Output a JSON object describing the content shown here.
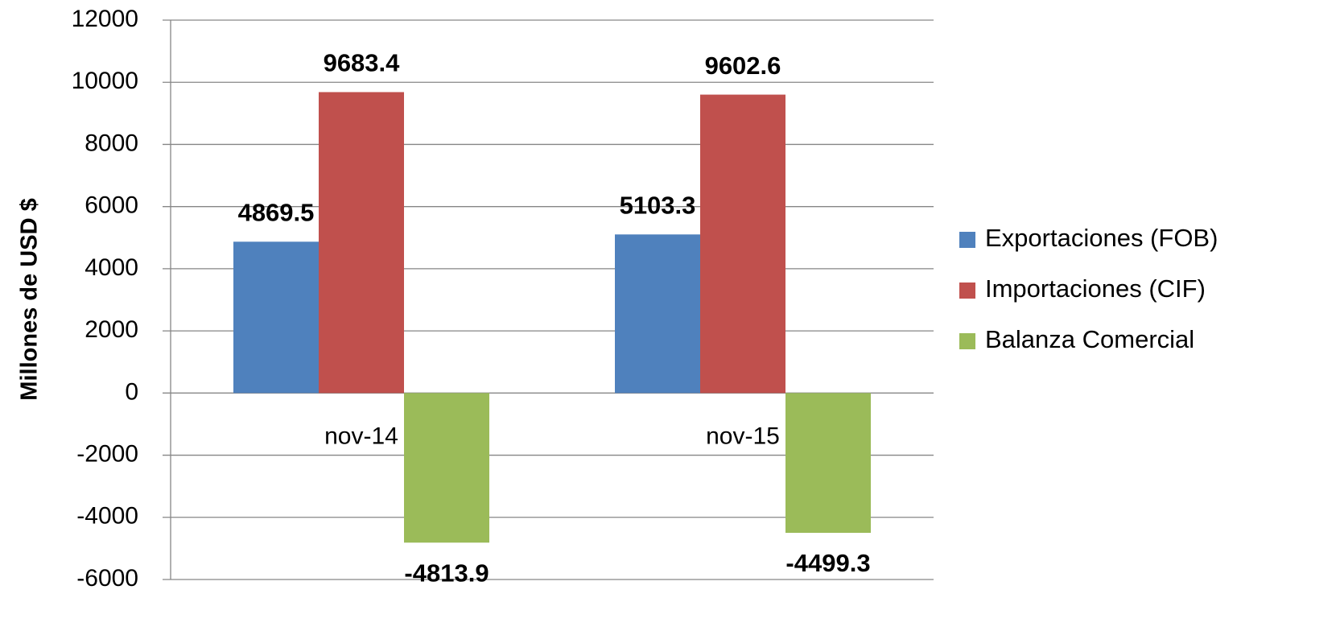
{
  "chart_data": {
    "type": "bar",
    "y_label": "Millones de USD $",
    "categories": [
      "nov-14",
      "nov-15"
    ],
    "series": [
      {
        "name": "Exportaciones (FOB)",
        "color": "#4f81bd",
        "values": [
          4869.5,
          5103.3
        ]
      },
      {
        "name": "Importaciones (CIF)",
        "color": "#c0504d",
        "values": [
          9683.4,
          9602.6
        ]
      },
      {
        "name": "Balanza Comercial",
        "color": "#9bbb59",
        "values": [
          -4813.9,
          -4499.3
        ]
      }
    ],
    "ylim": [
      -6000,
      12000
    ],
    "yticks": [
      -6000,
      -4000,
      -2000,
      0,
      2000,
      4000,
      6000,
      8000,
      10000,
      12000
    ],
    "grid": true,
    "legend": "right"
  }
}
